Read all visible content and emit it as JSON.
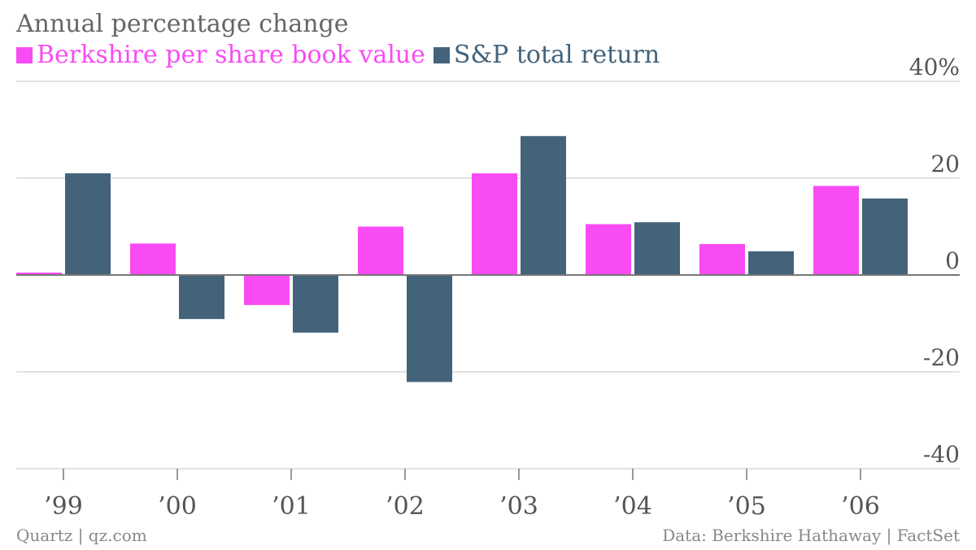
{
  "chart_data": {
    "type": "bar",
    "subtitle": "Annual percentage change",
    "categories": [
      "’99",
      "’00",
      "’01",
      "’02",
      "’03",
      "’04",
      "’05",
      "’06"
    ],
    "series": [
      {
        "name": "Berkshire per share book value",
        "color": "#f94bf4",
        "values": [
          0.5,
          6.5,
          -6.2,
          10.0,
          21.0,
          10.5,
          6.4,
          18.4
        ]
      },
      {
        "name": "S&P total return",
        "color": "#43637b",
        "values": [
          21.0,
          -9.1,
          -11.9,
          -22.1,
          28.7,
          10.9,
          4.9,
          15.8
        ]
      }
    ],
    "yticks": [
      {
        "value": 40,
        "label": "40%"
      },
      {
        "value": 20,
        "label": "20"
      },
      {
        "value": 0,
        "label": "0"
      },
      {
        "value": -20,
        "label": "-20"
      },
      {
        "value": -40,
        "label": "-40"
      }
    ],
    "ylim": [
      -40,
      40
    ],
    "grid": true,
    "legend_position": "top-left"
  },
  "footer": {
    "credit": "Quartz | qz.com",
    "source": "Data: Berkshire Hathaway | FactSet"
  }
}
